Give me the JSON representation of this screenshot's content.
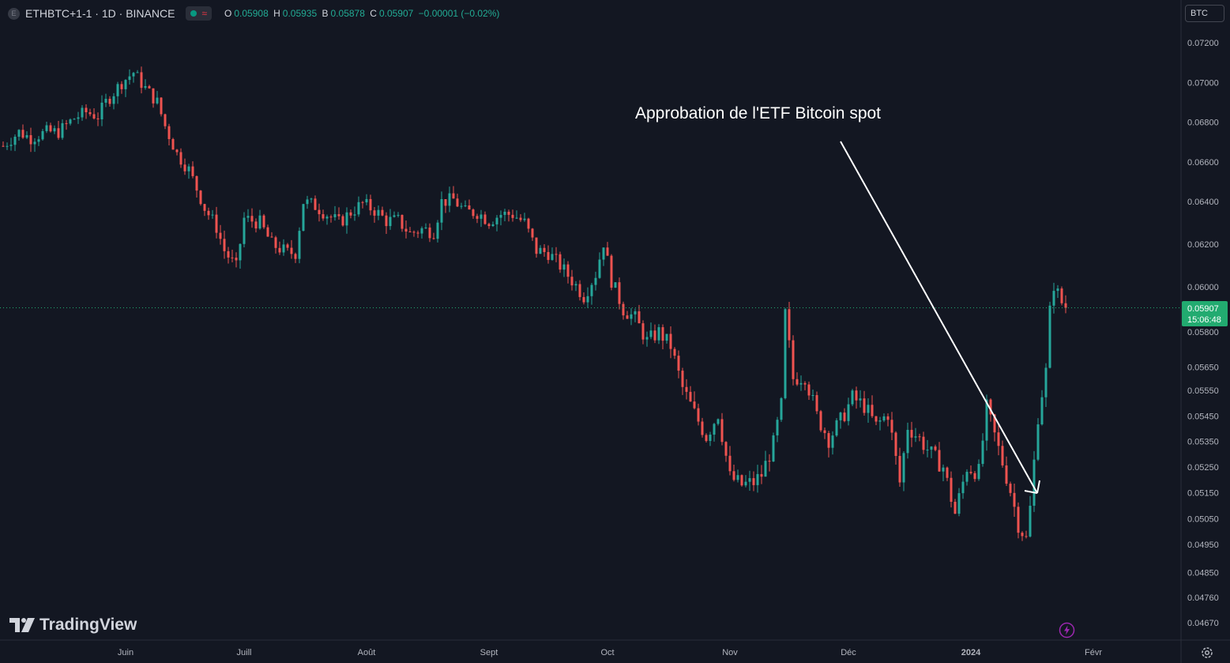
{
  "header": {
    "symbol_icon": "E",
    "symbol": "ETHBTC+1-1 · 1D · BINANCE",
    "indicator_icons": [
      "status-dot-icon",
      "wave-icon"
    ],
    "ohlc": {
      "o_label": "O",
      "o": "0.05908",
      "h_label": "H",
      "h": "0.05935",
      "l_label": "B",
      "l": "0.05878",
      "c_label": "C",
      "c": "0.05907",
      "change": "−0.00001 (−0.02%)"
    }
  },
  "unit_button": "BTC",
  "brand": "TradingView",
  "colors": {
    "background": "#131722",
    "up": "#26a69a",
    "down": "#ef5350",
    "label_up": "#22ab94",
    "price_tag": "#22ab70",
    "grid_text": "#b2b5be"
  },
  "chart_data": {
    "type": "candlestick",
    "annotation": "Approbation de l'ETF Bitcoin spot",
    "last_price": {
      "value": 0.05907,
      "label": "0.05907",
      "countdown": "15:06:48"
    },
    "y_ticks": [
      {
        "value": 0.072,
        "label": "0.07200"
      },
      {
        "value": 0.07,
        "label": "0.07000"
      },
      {
        "value": 0.068,
        "label": "0.06800"
      },
      {
        "value": 0.066,
        "label": "0.06600"
      },
      {
        "value": 0.064,
        "label": "0.06400"
      },
      {
        "value": 0.062,
        "label": "0.06200"
      },
      {
        "value": 0.06,
        "label": "0.06000"
      },
      {
        "value": 0.058,
        "label": "0.05800"
      },
      {
        "value": 0.0565,
        "label": "0.05650"
      },
      {
        "value": 0.0555,
        "label": "0.05550"
      },
      {
        "value": 0.0545,
        "label": "0.05450"
      },
      {
        "value": 0.0535,
        "label": "0.05350"
      },
      {
        "value": 0.0525,
        "label": "0.05250"
      },
      {
        "value": 0.0515,
        "label": "0.05150"
      },
      {
        "value": 0.0505,
        "label": "0.05050"
      },
      {
        "value": 0.0495,
        "label": "0.04950"
      },
      {
        "value": 0.0485,
        "label": "0.04850"
      },
      {
        "value": 0.0476,
        "label": "0.04760"
      },
      {
        "value": 0.0467,
        "label": "0.04670"
      }
    ],
    "x_ticks": [
      "Juin",
      "Juill",
      "Août",
      "Sept",
      "Oct",
      "Nov",
      "Déc",
      "2024",
      "Févr"
    ],
    "key_points": [
      {
        "date": "2023-05-01",
        "close": 0.0668
      },
      {
        "date": "2023-05-05",
        "close": 0.0675
      },
      {
        "date": "2023-05-08",
        "close": 0.0672
      },
      {
        "date": "2023-05-12",
        "close": 0.0675
      },
      {
        "date": "2023-05-15",
        "close": 0.0675
      },
      {
        "date": "2023-05-19",
        "close": 0.0682
      },
      {
        "date": "2023-05-22",
        "close": 0.0685
      },
      {
        "date": "2023-05-25",
        "close": 0.0683
      },
      {
        "date": "2023-05-27",
        "close": 0.069
      },
      {
        "date": "2023-05-31",
        "close": 0.07
      },
      {
        "date": "2023-06-03",
        "close": 0.0705
      },
      {
        "date": "2023-06-06",
        "close": 0.0697
      },
      {
        "date": "2023-06-09",
        "close": 0.069
      },
      {
        "date": "2023-06-11",
        "close": 0.0678
      },
      {
        "date": "2023-06-14",
        "close": 0.0664
      },
      {
        "date": "2023-06-17",
        "close": 0.0656
      },
      {
        "date": "2023-06-21",
        "close": 0.0637
      },
      {
        "date": "2023-06-24",
        "close": 0.0628
      },
      {
        "date": "2023-06-26",
        "close": 0.0617
      },
      {
        "date": "2023-06-29",
        "close": 0.0609
      },
      {
        "date": "2023-07-01",
        "close": 0.0632
      },
      {
        "date": "2023-07-05",
        "close": 0.063
      },
      {
        "date": "2023-07-08",
        "close": 0.062
      },
      {
        "date": "2023-07-12",
        "close": 0.0616
      },
      {
        "date": "2023-07-14",
        "close": 0.0616
      },
      {
        "date": "2023-07-16",
        "close": 0.064
      },
      {
        "date": "2023-07-19",
        "close": 0.0638
      },
      {
        "date": "2023-07-22",
        "close": 0.0634
      },
      {
        "date": "2023-07-25",
        "close": 0.063
      },
      {
        "date": "2023-07-28",
        "close": 0.0635
      },
      {
        "date": "2023-07-31",
        "close": 0.0639
      },
      {
        "date": "2023-08-03",
        "close": 0.0636
      },
      {
        "date": "2023-08-06",
        "close": 0.0631
      },
      {
        "date": "2023-08-09",
        "close": 0.0631
      },
      {
        "date": "2023-08-12",
        "close": 0.0625
      },
      {
        "date": "2023-08-15",
        "close": 0.0627
      },
      {
        "date": "2023-08-18",
        "close": 0.0626
      },
      {
        "date": "2023-08-20",
        "close": 0.064
      },
      {
        "date": "2023-08-23",
        "close": 0.0641
      },
      {
        "date": "2023-08-26",
        "close": 0.0635
      },
      {
        "date": "2023-08-29",
        "close": 0.0635
      },
      {
        "date": "2023-09-01",
        "close": 0.0631
      },
      {
        "date": "2023-09-04",
        "close": 0.0634
      },
      {
        "date": "2023-09-07",
        "close": 0.0634
      },
      {
        "date": "2023-09-10",
        "close": 0.063
      },
      {
        "date": "2023-09-13",
        "close": 0.0617
      },
      {
        "date": "2023-09-16",
        "close": 0.0616
      },
      {
        "date": "2023-09-19",
        "close": 0.061
      },
      {
        "date": "2023-09-22",
        "close": 0.0603
      },
      {
        "date": "2023-09-25",
        "close": 0.0596
      },
      {
        "date": "2023-09-28",
        "close": 0.0606
      },
      {
        "date": "2023-09-30",
        "close": 0.0621
      },
      {
        "date": "2023-10-02",
        "close": 0.0603
      },
      {
        "date": "2023-10-05",
        "close": 0.059
      },
      {
        "date": "2023-10-08",
        "close": 0.0586
      },
      {
        "date": "2023-10-11",
        "close": 0.0576
      },
      {
        "date": "2023-10-14",
        "close": 0.058
      },
      {
        "date": "2023-10-17",
        "close": 0.0574
      },
      {
        "date": "2023-10-20",
        "close": 0.0556
      },
      {
        "date": "2023-10-23",
        "close": 0.0546
      },
      {
        "date": "2023-10-26",
        "close": 0.0537
      },
      {
        "date": "2023-10-29",
        "close": 0.0546
      },
      {
        "date": "2023-11-01",
        "close": 0.0521
      },
      {
        "date": "2023-11-04",
        "close": 0.0518
      },
      {
        "date": "2023-11-07",
        "close": 0.0519
      },
      {
        "date": "2023-11-09",
        "close": 0.0522
      },
      {
        "date": "2023-11-12",
        "close": 0.0534
      },
      {
        "date": "2023-11-14",
        "close": 0.0549
      },
      {
        "date": "2023-11-15",
        "close": 0.0588
      },
      {
        "date": "2023-11-17",
        "close": 0.056
      },
      {
        "date": "2023-11-20",
        "close": 0.0561
      },
      {
        "date": "2023-11-23",
        "close": 0.0545
      },
      {
        "date": "2023-11-26",
        "close": 0.0536
      },
      {
        "date": "2023-11-29",
        "close": 0.0543
      },
      {
        "date": "2023-12-02",
        "close": 0.0552
      },
      {
        "date": "2023-12-05",
        "close": 0.0549
      },
      {
        "date": "2023-12-08",
        "close": 0.0541
      },
      {
        "date": "2023-12-11",
        "close": 0.0546
      },
      {
        "date": "2023-12-14",
        "close": 0.0519
      },
      {
        "date": "2023-12-16",
        "close": 0.0541
      },
      {
        "date": "2023-12-19",
        "close": 0.0536
      },
      {
        "date": "2023-12-22",
        "close": 0.053
      },
      {
        "date": "2023-12-25",
        "close": 0.0525
      },
      {
        "date": "2023-12-28",
        "close": 0.0507
      },
      {
        "date": "2023-12-31",
        "close": 0.0525
      },
      {
        "date": "2024-01-03",
        "close": 0.0523
      },
      {
        "date": "2024-01-05",
        "close": 0.0548
      },
      {
        "date": "2024-01-08",
        "close": 0.0532
      },
      {
        "date": "2024-01-11",
        "close": 0.0516
      },
      {
        "date": "2024-01-13",
        "close": 0.0503
      },
      {
        "date": "2024-01-15",
        "close": 0.0497
      },
      {
        "date": "2024-01-16",
        "close": 0.0509
      },
      {
        "date": "2024-01-18",
        "close": 0.0545
      },
      {
        "date": "2024-01-20",
        "close": 0.0563
      },
      {
        "date": "2024-01-21",
        "close": 0.0589
      },
      {
        "date": "2024-01-22",
        "close": 0.0601
      },
      {
        "date": "2024-01-24",
        "close": 0.0593
      },
      {
        "date": "2024-01-25",
        "close": 0.0591
      }
    ]
  }
}
